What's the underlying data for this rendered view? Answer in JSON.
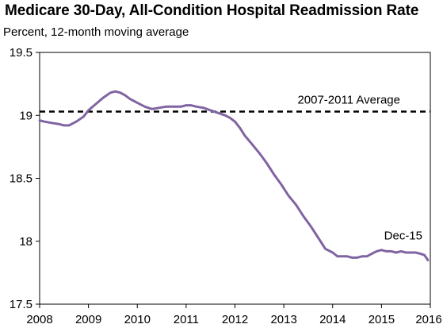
{
  "chart_data": {
    "type": "line",
    "title": "Medicare 30-Day, All-Condition Hospital Readmission Rate",
    "subtitle": "Percent, 12-month moving average",
    "xlabel": "",
    "ylabel": "",
    "xlim": [
      2008,
      2016
    ],
    "ylim": [
      17.5,
      19.5
    ],
    "x_ticks": [
      "2008",
      "2009",
      "2010",
      "2011",
      "2012",
      "2013",
      "2014",
      "2015",
      "2016"
    ],
    "y_ticks": [
      "17.5",
      "18",
      "18.5",
      "19",
      "19.5"
    ],
    "grid": false,
    "legend": "none",
    "series": [
      {
        "color": "#8064a2",
        "x": [
          2008.0,
          2008.1,
          2008.25,
          2008.4,
          2008.5,
          2008.6,
          2008.75,
          2008.9,
          2009.0,
          2009.15,
          2009.3,
          2009.45,
          2009.55,
          2009.65,
          2009.75,
          2009.85,
          2010.0,
          2010.15,
          2010.3,
          2010.45,
          2010.6,
          2010.75,
          2010.9,
          2011.0,
          2011.1,
          2011.2,
          2011.35,
          2011.5,
          2011.65,
          2011.8,
          2011.9,
          2012.0,
          2012.1,
          2012.2,
          2012.35,
          2012.5,
          2012.65,
          2012.8,
          2012.95,
          2013.1,
          2013.25,
          2013.4,
          2013.55,
          2013.7,
          2013.85,
          2014.0,
          2014.1,
          2014.2,
          2014.3,
          2014.4,
          2014.5,
          2014.6,
          2014.7,
          2014.8,
          2014.9,
          2015.0,
          2015.1,
          2015.2,
          2015.3,
          2015.4,
          2015.5,
          2015.6,
          2015.7,
          2015.8,
          2015.88,
          2015.95
        ],
        "values": [
          18.96,
          18.95,
          18.94,
          18.93,
          18.92,
          18.92,
          18.95,
          18.99,
          19.04,
          19.09,
          19.14,
          19.18,
          19.19,
          19.18,
          19.16,
          19.13,
          19.1,
          19.07,
          19.05,
          19.06,
          19.07,
          19.07,
          19.07,
          19.08,
          19.08,
          19.07,
          19.06,
          19.04,
          19.02,
          19.0,
          18.98,
          18.95,
          18.9,
          18.84,
          18.77,
          18.7,
          18.62,
          18.53,
          18.45,
          18.36,
          18.29,
          18.2,
          18.12,
          18.03,
          17.94,
          17.91,
          17.88,
          17.88,
          17.88,
          17.87,
          17.87,
          17.88,
          17.88,
          17.9,
          17.92,
          17.93,
          17.92,
          17.92,
          17.91,
          17.92,
          17.91,
          17.91,
          17.91,
          17.9,
          17.89,
          17.85
        ]
      }
    ],
    "reference_line": {
      "label": "2007-2011 Average",
      "value": 19.03,
      "style": "dashed",
      "color": "#000000"
    },
    "annotations": [
      {
        "text": "Dec-15"
      }
    ]
  }
}
